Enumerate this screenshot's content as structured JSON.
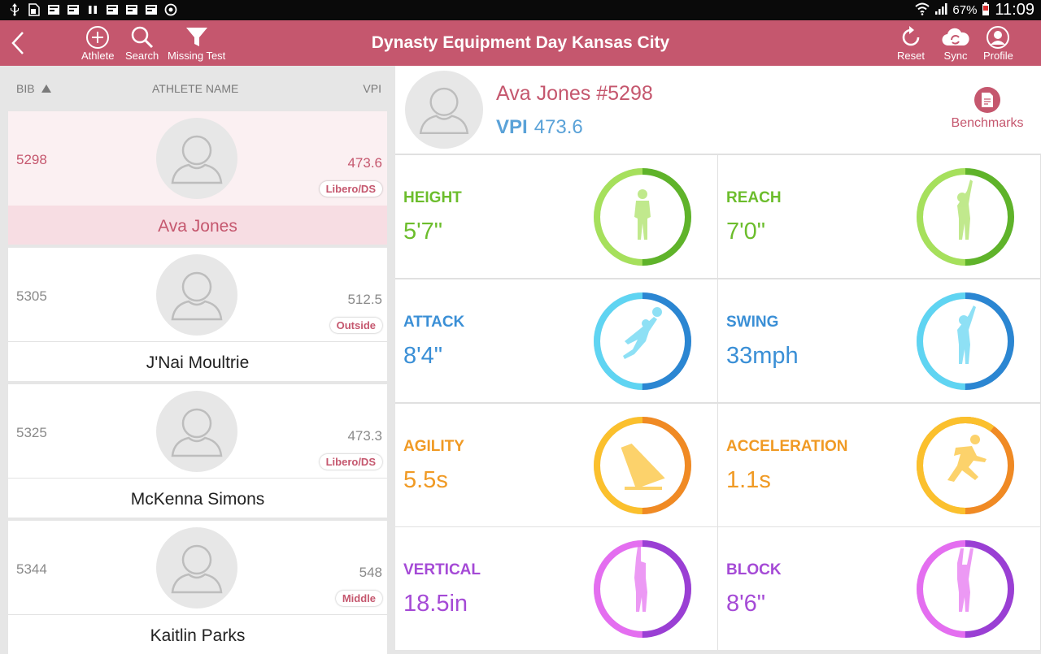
{
  "status_bar": {
    "battery": "67%",
    "time": "11:09"
  },
  "app_bar": {
    "title": "Dynasty Equipment Day Kansas City",
    "athlete_label": "Athlete",
    "search_label": "Search",
    "missing_test_label": "Missing Test",
    "reset_label": "Reset",
    "sync_label": "Sync",
    "profile_label": "Profile"
  },
  "list": {
    "headers": {
      "bib": "BIB",
      "name": "ATHLETE NAME",
      "vpi": "VPI"
    },
    "athletes": [
      {
        "bib": "5298",
        "vpi": "473.6",
        "position": "Libero/DS",
        "name": "Ava Jones"
      },
      {
        "bib": "5305",
        "vpi": "512.5",
        "position": "Outside",
        "name": "J'Nai Moultrie"
      },
      {
        "bib": "5325",
        "vpi": "473.3",
        "position": "Libero/DS",
        "name": "McKenna Simons"
      },
      {
        "bib": "5344",
        "vpi": "548",
        "position": "Middle",
        "name": "Kaitlin Parks"
      }
    ]
  },
  "detail": {
    "name": "Ava Jones #5298",
    "vpi_label": "VPI",
    "vpi_value": "473.6",
    "benchmarks_label": "Benchmarks",
    "metrics": [
      {
        "label": "HEIGHT",
        "value": "5'7\"",
        "color": "#6cbd2c",
        "ring_from": "#a6e05c",
        "ring_to": "#5fb32a",
        "fraction": 0.5,
        "icon": "standing-athlete-icon"
      },
      {
        "label": "REACH",
        "value": "7'0\"",
        "color": "#6cbd2c",
        "ring_from": "#a6e05c",
        "ring_to": "#5fb32a",
        "fraction": 0.5,
        "icon": "reaching-athlete-icon"
      },
      {
        "label": "ATTACK",
        "value": "8'4\"",
        "color": "#3a8fd6",
        "ring_from": "#5fd4f2",
        "ring_to": "#2b86d2",
        "fraction": 0.5,
        "icon": "spiking-athlete-icon"
      },
      {
        "label": "SWING",
        "value": "33mph",
        "color": "#3a8fd6",
        "ring_from": "#5fd4f2",
        "ring_to": "#2b86d2",
        "fraction": 0.5,
        "icon": "swinging-athlete-icon"
      },
      {
        "label": "AGILITY",
        "value": "5.5s",
        "color": "#f09a24",
        "ring_from": "#fbc02d",
        "ring_to": "#f08a24",
        "fraction": 0.5,
        "icon": "cone-icon"
      },
      {
        "label": "ACCELERATION",
        "value": "1.1s",
        "color": "#f09a24",
        "ring_from": "#fbc02d",
        "ring_to": "#f08a24",
        "fraction": 0.6,
        "icon": "sprinting-athlete-icon"
      },
      {
        "label": "VERTICAL",
        "value": "18.5in",
        "color": "#a54ad6",
        "ring_from": "#e46ef0",
        "ring_to": "#9a3fd4",
        "fraction": 0.5,
        "icon": "jumping-athlete-icon"
      },
      {
        "label": "BLOCK",
        "value": "8'6\"",
        "color": "#a54ad6",
        "ring_from": "#e46ef0",
        "ring_to": "#9a3fd4",
        "fraction": 0.5,
        "icon": "blocking-athlete-icon"
      }
    ]
  }
}
